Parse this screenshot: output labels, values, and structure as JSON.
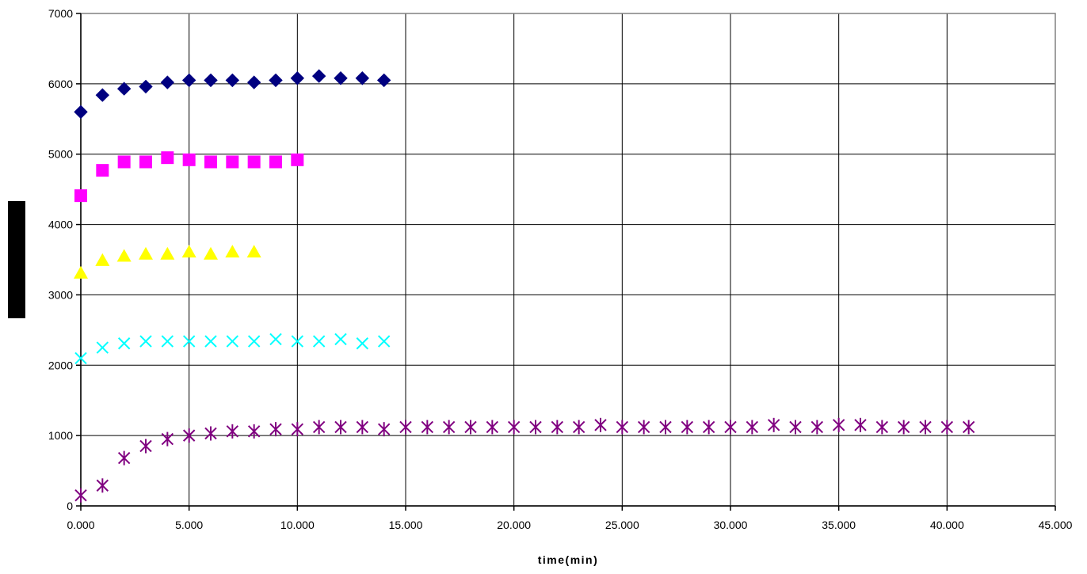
{
  "chart_data": {
    "type": "scatter",
    "title": "",
    "xlabel": "time(min)",
    "ylabel": "",
    "xlim": [
      0,
      45
    ],
    "ylim": [
      0,
      7000
    ],
    "grid": true,
    "legend": "none",
    "x_ticks": [
      "0.000",
      "5.000",
      "10.000",
      "15.000",
      "20.000",
      "25.000",
      "30.000",
      "35.000",
      "40.000",
      "45.000"
    ],
    "y_ticks": [
      "0",
      "1000",
      "2000",
      "3000",
      "4000",
      "5000",
      "6000",
      "7000"
    ],
    "series": [
      {
        "marker": "diamond",
        "color": "#000080",
        "x": [
          0,
          1,
          2,
          3,
          4,
          5,
          6,
          7,
          8,
          9,
          10,
          11,
          12,
          13,
          14
        ],
        "y": [
          5600,
          5840,
          5930,
          5960,
          6020,
          6050,
          6050,
          6050,
          6020,
          6050,
          6080,
          6110,
          6080,
          6080,
          6050
        ]
      },
      {
        "marker": "square",
        "color": "#FF00FF",
        "x": [
          0,
          1,
          2,
          3,
          4,
          5,
          6,
          7,
          8,
          9,
          10
        ],
        "y": [
          4410,
          4770,
          4890,
          4890,
          4950,
          4920,
          4890,
          4890,
          4890,
          4890,
          4920
        ]
      },
      {
        "marker": "triangle",
        "color": "#FFFF00",
        "x": [
          0,
          1,
          2,
          3,
          4,
          5,
          6,
          7,
          8
        ],
        "y": [
          3310,
          3490,
          3550,
          3580,
          3580,
          3610,
          3580,
          3610,
          3610
        ]
      },
      {
        "marker": "x",
        "color": "#00FFFF",
        "x": [
          0,
          1,
          2,
          3,
          4,
          5,
          6,
          7,
          8,
          9,
          10,
          11,
          12,
          13,
          14
        ],
        "y": [
          2100,
          2250,
          2310,
          2340,
          2340,
          2340,
          2340,
          2340,
          2340,
          2370,
          2340,
          2340,
          2370,
          2310,
          2340
        ]
      },
      {
        "marker": "star",
        "color": "#800080",
        "x": [
          0,
          1,
          2,
          3,
          4,
          5,
          6,
          7,
          8,
          9,
          10,
          11,
          12,
          13,
          14,
          15,
          16,
          17,
          18,
          19,
          20,
          21,
          22,
          23,
          24,
          25,
          26,
          27,
          28,
          29,
          30,
          31,
          32,
          33,
          34,
          35,
          36,
          37,
          38,
          39,
          40,
          41
        ],
        "y": [
          150,
          290,
          680,
          850,
          950,
          1000,
          1030,
          1060,
          1060,
          1090,
          1090,
          1120,
          1120,
          1120,
          1090,
          1120,
          1120,
          1120,
          1120,
          1120,
          1120,
          1120,
          1120,
          1120,
          1150,
          1120,
          1120,
          1120,
          1120,
          1120,
          1120,
          1120,
          1150,
          1120,
          1120,
          1150,
          1150,
          1120,
          1120,
          1120,
          1120,
          1120
        ]
      }
    ]
  }
}
